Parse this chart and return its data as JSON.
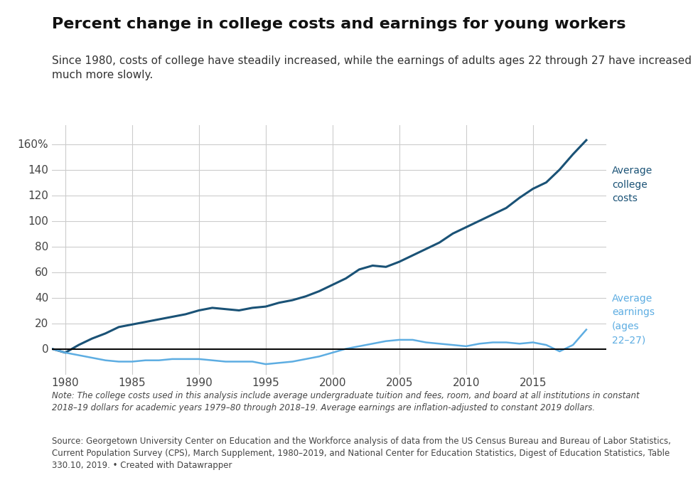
{
  "title": "Percent change in college costs and earnings for young workers",
  "subtitle": "Since 1980, costs of college have steadily increased, while the earnings of adults ages 22 through 27 have increased\nmuch more slowly.",
  "note": "Note: The college costs used in this analysis include average undergraduate tuition and fees, room, and board at all institutions in constant\n2018–19 dollars for academic years 1979–80 through 2018–19. Average earnings are inflation-adjusted to constant 2019 dollars.",
  "source": "Source: Georgetown University Center on Education and the Workforce analysis of data from the US Census Bureau and Bureau of Labor Statistics,\nCurrent Population Survey (CPS), March Supplement, 1980–2019, and National Center for Education Statistics, Digest of Education Statistics, Table\n330.10, 2019. • Created with Datawrapper",
  "college_costs_label": "Average\ncollege\ncosts",
  "earnings_label": "Average\nearnings\n(ages\n22–27)",
  "college_color": "#1a5276",
  "earnings_color": "#5dade2",
  "background_color": "#ffffff",
  "grid_color": "#cccccc",
  "years": [
    1979,
    1980,
    1981,
    1982,
    1983,
    1984,
    1985,
    1986,
    1987,
    1988,
    1989,
    1990,
    1991,
    1992,
    1993,
    1994,
    1995,
    1996,
    1997,
    1998,
    1999,
    2000,
    2001,
    2002,
    2003,
    2004,
    2005,
    2006,
    2007,
    2008,
    2009,
    2010,
    2011,
    2012,
    2013,
    2014,
    2015,
    2016,
    2017,
    2018,
    2019
  ],
  "college_costs": [
    0,
    -3,
    3,
    8,
    12,
    17,
    19,
    21,
    23,
    25,
    27,
    30,
    32,
    31,
    30,
    32,
    33,
    36,
    38,
    41,
    45,
    50,
    55,
    62,
    65,
    64,
    68,
    73,
    78,
    83,
    90,
    95,
    100,
    105,
    110,
    118,
    125,
    130,
    140,
    152,
    163
  ],
  "earnings": [
    0,
    -3,
    -5,
    -7,
    -9,
    -10,
    -10,
    -9,
    -9,
    -8,
    -8,
    -8,
    -9,
    -10,
    -10,
    -10,
    -12,
    -11,
    -10,
    -8,
    -6,
    -3,
    0,
    2,
    4,
    6,
    7,
    7,
    5,
    4,
    3,
    2,
    4,
    5,
    5,
    4,
    5,
    3,
    -2,
    3,
    15
  ],
  "ylim": [
    -20,
    175
  ],
  "yticks": [
    0,
    20,
    40,
    60,
    80,
    100,
    120,
    140,
    160
  ],
  "ytick_labels": [
    "0",
    "20",
    "40",
    "60",
    "80",
    "100",
    "120",
    "140",
    "160%"
  ],
  "xticks": [
    1980,
    1985,
    1990,
    1995,
    2000,
    2005,
    2010,
    2015
  ],
  "xlim": [
    1979,
    2020.5
  ]
}
